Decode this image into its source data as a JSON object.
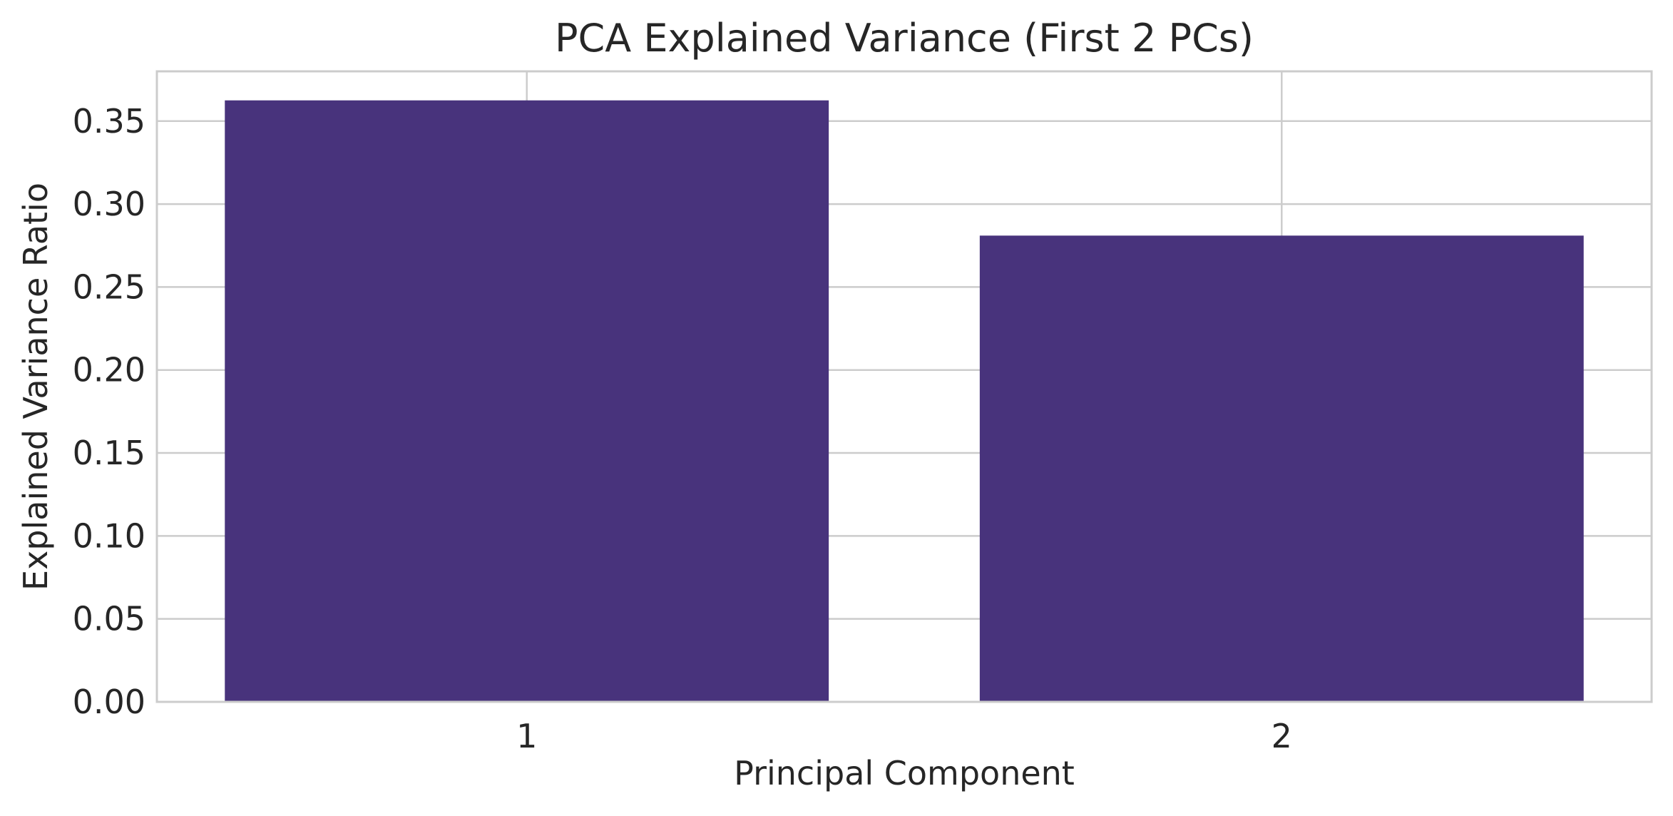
{
  "chart_data": {
    "type": "bar",
    "title": "PCA Explained Variance (First 2 PCs)",
    "xlabel": "Principal Component",
    "ylabel": "Explained Variance Ratio",
    "categories": [
      "1",
      "2"
    ],
    "values": [
      0.3625,
      0.281
    ],
    "ylim": [
      0,
      0.38
    ],
    "yticks": [
      0.0,
      0.05,
      0.1,
      0.15,
      0.2,
      0.25,
      0.3,
      0.35
    ],
    "ytick_labels": [
      "0.00",
      "0.05",
      "0.10",
      "0.15",
      "0.20",
      "0.25",
      "0.30",
      "0.35"
    ],
    "grid": true,
    "legend": "none",
    "colors": {
      "bar": "#48337c",
      "grid": "#cccccc",
      "text": "#262626"
    }
  }
}
